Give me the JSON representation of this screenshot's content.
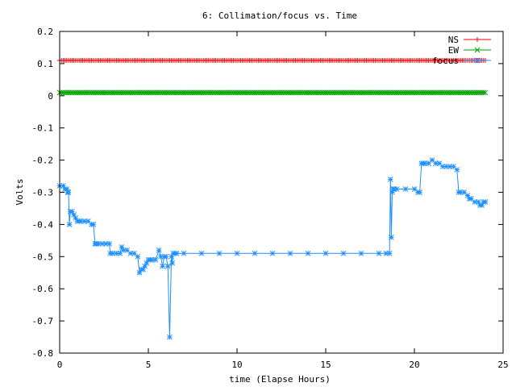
{
  "chart_data": {
    "type": "line",
    "title": "6: Collimation/focus vs. Time",
    "xlabel": "time (Elapse Hours)",
    "ylabel": "Volts",
    "xlim": [
      0,
      25
    ],
    "ylim": [
      -0.8,
      0.2
    ],
    "x_ticks": [
      0,
      5,
      10,
      15,
      20,
      25
    ],
    "y_ticks": [
      0.2,
      0.1,
      0,
      -0.1,
      -0.2,
      -0.3,
      -0.4,
      -0.5,
      -0.6,
      -0.7,
      -0.8
    ],
    "x_tick_labels": [
      "0",
      "5",
      "10",
      "15",
      "20",
      "25"
    ],
    "y_tick_labels": [
      "0.2",
      "0.1",
      "0",
      "-0.1",
      "-0.2",
      "-0.3",
      "-0.4",
      "-0.5",
      "-0.6",
      "-0.7",
      "-0.8"
    ],
    "grid": false,
    "legend_position": "top-right",
    "series": [
      {
        "name": "NS",
        "color": "#ff0000",
        "marker": "plus",
        "x": [
          0,
          24
        ],
        "y": [
          0.11,
          0.11
        ],
        "sample_step": 0.1
      },
      {
        "name": "EW",
        "color": "#00a000",
        "marker": "cross",
        "x": [
          0,
          24
        ],
        "y": [
          0.01,
          0.01
        ],
        "sample_step": 0.1
      },
      {
        "name": "focus",
        "color": "#1e90ff",
        "marker": "star",
        "x": [
          0.0,
          0.2,
          0.3,
          0.4,
          0.45,
          0.5,
          0.55,
          0.6,
          0.7,
          0.8,
          0.9,
          1.0,
          1.1,
          1.2,
          1.4,
          1.6,
          1.8,
          1.9,
          2.0,
          2.05,
          2.2,
          2.4,
          2.6,
          2.8,
          2.85,
          3.0,
          3.2,
          3.4,
          3.5,
          3.6,
          3.8,
          4.0,
          4.2,
          4.4,
          4.5,
          4.6,
          4.7,
          4.8,
          4.9,
          5.0,
          5.1,
          5.2,
          5.4,
          5.6,
          5.7,
          5.8,
          5.9,
          6.0,
          6.1,
          6.2,
          6.3,
          6.35,
          6.4,
          6.5,
          6.6,
          7.0,
          8.0,
          9.0,
          10.0,
          11.0,
          12.0,
          13.0,
          14.0,
          15.0,
          16.0,
          17.0,
          18.0,
          18.4,
          18.6,
          18.65,
          18.7,
          18.75,
          18.8,
          18.85,
          19.0,
          19.5,
          20.0,
          20.2,
          20.3,
          20.4,
          20.5,
          20.6,
          20.8,
          21.0,
          21.2,
          21.4,
          21.6,
          21.8,
          22.0,
          22.2,
          22.4,
          22.5,
          22.6,
          22.8,
          23.0,
          23.1,
          23.2,
          23.4,
          23.6,
          23.7,
          23.8,
          23.9,
          24.0
        ],
        "y": [
          -0.28,
          -0.28,
          -0.29,
          -0.29,
          -0.3,
          -0.3,
          -0.4,
          -0.36,
          -0.36,
          -0.37,
          -0.38,
          -0.39,
          -0.39,
          -0.39,
          -0.39,
          -0.39,
          -0.4,
          -0.4,
          -0.46,
          -0.46,
          -0.46,
          -0.46,
          -0.46,
          -0.46,
          -0.49,
          -0.49,
          -0.49,
          -0.49,
          -0.47,
          -0.48,
          -0.48,
          -0.49,
          -0.49,
          -0.5,
          -0.55,
          -0.54,
          -0.54,
          -0.53,
          -0.52,
          -0.51,
          -0.51,
          -0.51,
          -0.51,
          -0.48,
          -0.5,
          -0.53,
          -0.5,
          -0.5,
          -0.53,
          -0.75,
          -0.5,
          -0.52,
          -0.49,
          -0.49,
          -0.49,
          -0.49,
          -0.49,
          -0.49,
          -0.49,
          -0.49,
          -0.49,
          -0.49,
          -0.49,
          -0.49,
          -0.49,
          -0.49,
          -0.49,
          -0.49,
          -0.49,
          -0.26,
          -0.44,
          -0.3,
          -0.29,
          -0.29,
          -0.29,
          -0.29,
          -0.29,
          -0.3,
          -0.3,
          -0.21,
          -0.21,
          -0.21,
          -0.21,
          -0.2,
          -0.21,
          -0.21,
          -0.22,
          -0.22,
          -0.22,
          -0.22,
          -0.23,
          -0.3,
          -0.3,
          -0.3,
          -0.31,
          -0.32,
          -0.32,
          -0.33,
          -0.33,
          -0.34,
          -0.34,
          -0.33,
          -0.33
        ]
      }
    ]
  }
}
